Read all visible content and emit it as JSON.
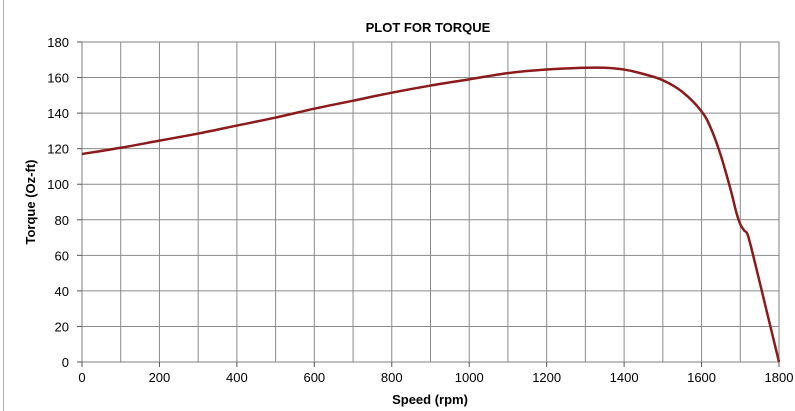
{
  "chart_data": {
    "type": "line",
    "title": "PLOT FOR TORQUE",
    "xlabel": "Speed (rpm)",
    "ylabel": "Torque (Oz-ft)",
    "xlim": [
      0,
      1800
    ],
    "ylim": [
      0,
      180
    ],
    "x_ticks": [
      0,
      200,
      400,
      600,
      800,
      1000,
      1200,
      1400,
      1600,
      1800
    ],
    "y_ticks": [
      0,
      20,
      40,
      60,
      80,
      100,
      120,
      140,
      160,
      180
    ],
    "x_tick_labels": [
      "0",
      "200",
      "400",
      "600",
      "800",
      "1000",
      "1200",
      "1400",
      "1600",
      "1800"
    ],
    "y_tick_labels": [
      "0",
      "20",
      "40",
      "60",
      "80",
      "100",
      "120",
      "140",
      "160",
      "180"
    ],
    "grid": true,
    "line_color": "#8b1a1a",
    "series": [
      {
        "x": [
          0,
          100,
          200,
          300,
          400,
          500,
          600,
          700,
          800,
          900,
          1000,
          1100,
          1200,
          1300,
          1350,
          1400,
          1450,
          1500,
          1550,
          1600,
          1625,
          1650,
          1675,
          1690,
          1700,
          1710,
          1720,
          1740,
          1760,
          1780,
          1800
        ],
        "y": [
          117,
          120.5,
          124.5,
          128.5,
          133,
          137.5,
          142.5,
          147,
          151.5,
          155.5,
          159,
          162.5,
          164.5,
          165.5,
          165.5,
          164.5,
          162,
          158.5,
          152,
          141,
          131,
          116,
          97,
          84,
          77.5,
          74,
          71,
          54,
          36,
          18,
          0
        ]
      }
    ]
  }
}
